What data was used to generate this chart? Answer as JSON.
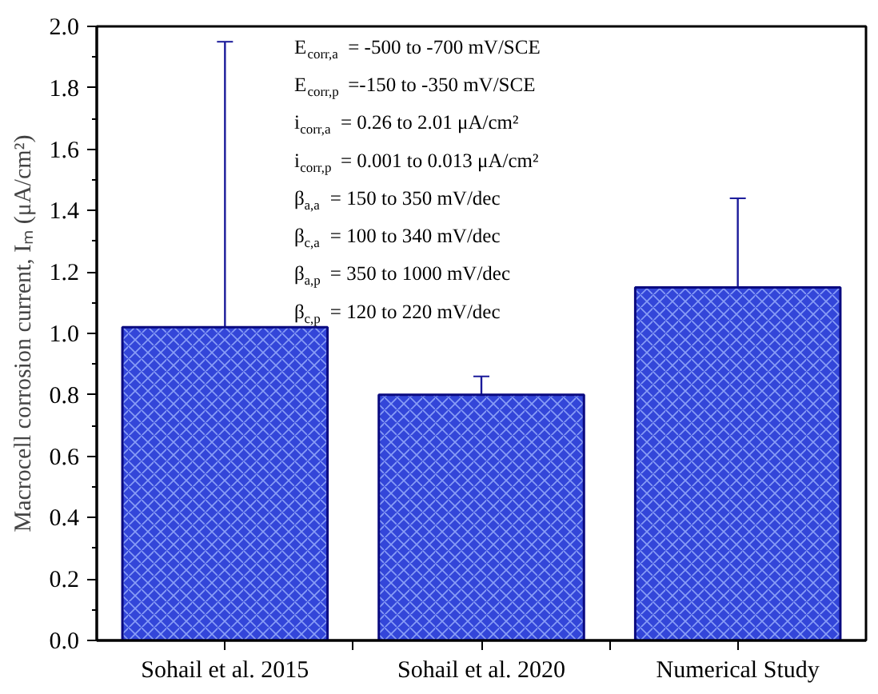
{
  "chart_data": {
    "type": "bar",
    "ylabel": "Macrocell corrosion current, Iₘ (μA/cm²)",
    "categories": [
      "Sohail et al. 2015",
      "Sohail et al. 2020",
      "Numerical Study"
    ],
    "values": [
      1.02,
      0.8,
      1.15
    ],
    "errors": [
      [
        0.5,
        1.95
      ],
      [
        0.75,
        0.86
      ],
      [
        0.4,
        1.44
      ]
    ],
    "color": "#3346d9",
    "ylim": [
      0,
      2.0
    ],
    "yticks": [
      {
        "value": 0,
        "label": "0.0"
      },
      {
        "value": 0.2,
        "label": "0.2"
      },
      {
        "value": 0.4,
        "label": "0.4"
      },
      {
        "value": 0.6,
        "label": "0.6"
      },
      {
        "value": 0.8,
        "label": "0.8"
      },
      {
        "value": 1.0,
        "label": "1.0"
      },
      {
        "value": 1.2,
        "label": "1.2"
      },
      {
        "value": 1.4,
        "label": "1.4"
      },
      {
        "value": 1.6,
        "label": "1.6"
      },
      {
        "value": 1.8,
        "label": "1.8"
      },
      {
        "value": 2.0,
        "label": "2.0"
      }
    ],
    "grid": false,
    "annotations": [
      "E$_{corr,a}$ = -500 to -700 mV/SCE",
      "E$_{corr,p}$ =-150 to -350 mV/SCE",
      "i$_{corr,a}$ = 0.26 to 2.01 μA/cm²",
      "i$_{corr,p}$ = 0.001 to 0.013 μA/cm²",
      "β$_{a,a}$ = 150 to 350 mV/dec",
      "β$_{c,a}$ = 100 to 340 mV/dec",
      "β$_{a,p}$ = 350 to 1000 mV/dec",
      "β$_{c,p}$ = 120 to 220 mV/dec"
    ]
  }
}
